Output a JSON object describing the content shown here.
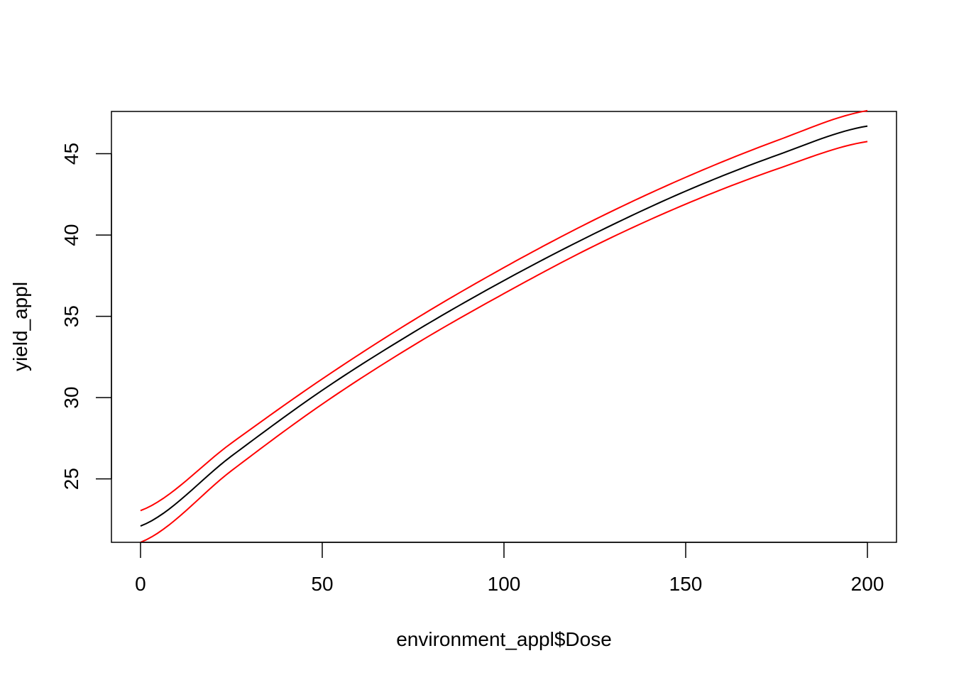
{
  "chart_data": {
    "type": "line",
    "title": "",
    "xlabel": "environment_appl$Dose",
    "ylabel": "yield_appl",
    "xlim": [
      -8,
      208
    ],
    "ylim": [
      21.1,
      47.6
    ],
    "xticks": [
      0,
      50,
      100,
      150,
      200
    ],
    "yticks": [
      25,
      30,
      35,
      40,
      45
    ],
    "grid": false,
    "legend": "none",
    "series": [
      {
        "color": "#000000",
        "x": [
          0,
          25,
          50,
          75,
          100,
          125,
          150,
          175,
          200
        ],
        "y": [
          22.1,
          26.4,
          30.45,
          34.0,
          37.2,
          40.1,
          42.7,
          44.9,
          46.7
        ]
      },
      {
        "color": "#ff0000",
        "x": [
          0,
          25,
          50,
          75,
          100,
          125,
          150,
          175,
          200
        ],
        "y": [
          23.05,
          27.2,
          31.15,
          34.75,
          38.0,
          40.95,
          43.55,
          45.8,
          47.65
        ]
      },
      {
        "color": "#ff0000",
        "x": [
          0,
          25,
          50,
          75,
          100,
          125,
          150,
          175,
          200
        ],
        "y": [
          21.1,
          25.5,
          29.6,
          33.2,
          36.4,
          39.35,
          41.9,
          44.05,
          45.75
        ]
      }
    ]
  }
}
